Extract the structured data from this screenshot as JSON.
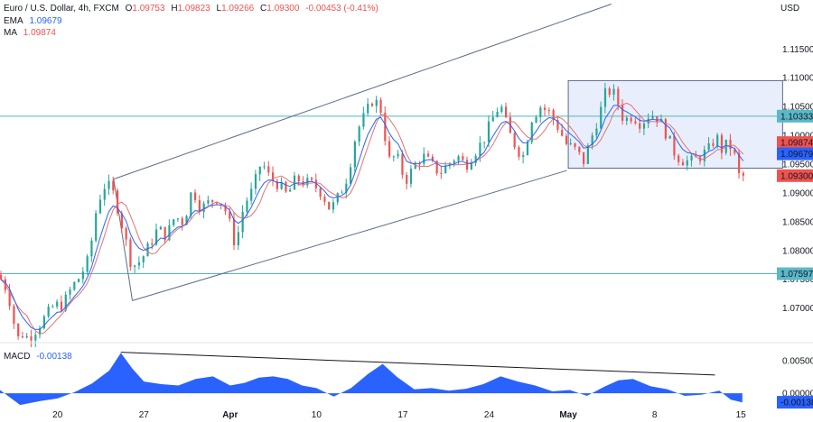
{
  "header": {
    "symbol": "Euro / U.S. Dollar, 4h, FXCM",
    "open_label": "O",
    "open": "1.09753",
    "high_label": "H",
    "high": "1.09823",
    "low_label": "L",
    "low": "1.09266",
    "close_label": "C",
    "close": "1.09300",
    "change": "-0.00453 (-0.41%)",
    "ema_label": "EMA",
    "ema_value": "1.09679",
    "ma_label": "MA",
    "ma_value": "1.09874"
  },
  "macd": {
    "label": "MACD",
    "value": "-0.00138"
  },
  "currency": "USD",
  "colors": {
    "up": "#26a69a",
    "down": "#ef5350",
    "ema": "#2962ff",
    "ma": "#e57373",
    "level": "#4db6c8",
    "channel": "#5d6b8a",
    "range_fill": "#e8eefc",
    "macd_fill": "#2962ff",
    "axis_text": "#131722",
    "ema_tag": "#2962ff",
    "ma_tag": "#ef5350",
    "close_tag": "#ef5350",
    "level_tag": "#5ab8c9"
  },
  "chart_data": {
    "type": "candlestick",
    "y_axis": {
      "range": [
        1.064,
        1.1235
      ],
      "ticks": [
        "1.11500",
        "1.11000",
        "1.10500",
        "1.10000",
        "1.09500",
        "1.09000",
        "1.08500",
        "1.08000",
        "1.07500",
        "1.07000"
      ],
      "tick_values": [
        1.115,
        1.11,
        1.105,
        1.1,
        1.095,
        1.09,
        1.085,
        1.08,
        1.075,
        1.07
      ]
    },
    "x_axis": {
      "labels": [
        "20",
        "27",
        "Apr",
        "10",
        "17",
        "24",
        "May",
        "8",
        "15"
      ],
      "bar_index": [
        40,
        100,
        160,
        220,
        280,
        340,
        395,
        455,
        515
      ],
      "bar_count": 540
    },
    "price_path": [
      [
        0,
        1.0758
      ],
      [
        5,
        1.0745
      ],
      [
        10,
        1.0705
      ],
      [
        14,
        1.0645
      ],
      [
        18,
        1.0655
      ],
      [
        22,
        1.0648
      ],
      [
        28,
        1.0665
      ],
      [
        34,
        1.0685
      ],
      [
        40,
        1.0705
      ],
      [
        46,
        1.0705
      ],
      [
        52,
        1.0735
      ],
      [
        58,
        1.0755
      ],
      [
        64,
        1.0785
      ],
      [
        70,
        1.0882
      ],
      [
        76,
        1.0918
      ],
      [
        82,
        1.0895
      ],
      [
        88,
        1.0835
      ],
      [
        94,
        1.0772
      ],
      [
        100,
        1.0782
      ],
      [
        106,
        1.0808
      ],
      [
        112,
        1.0838
      ],
      [
        118,
        1.0825
      ],
      [
        124,
        1.086
      ],
      [
        130,
        1.0848
      ],
      [
        136,
        1.0908
      ],
      [
        142,
        1.0872
      ],
      [
        148,
        1.0885
      ],
      [
        154,
        1.0892
      ],
      [
        160,
        1.0865
      ],
      [
        166,
        1.0808
      ],
      [
        172,
        1.088
      ],
      [
        178,
        1.0905
      ],
      [
        184,
        1.0955
      ],
      [
        190,
        1.0925
      ],
      [
        196,
        1.0915
      ],
      [
        202,
        1.0895
      ],
      [
        208,
        1.0925
      ],
      [
        214,
        1.0918
      ],
      [
        220,
        1.0915
      ],
      [
        226,
        1.09
      ],
      [
        232,
        1.087
      ],
      [
        238,
        1.0895
      ],
      [
        244,
        1.093
      ],
      [
        250,
        1.1005
      ],
      [
        256,
        1.1035
      ],
      [
        262,
        1.1065
      ],
      [
        268,
        1.104
      ],
      [
        272,
        1.0955
      ],
      [
        278,
        1.0965
      ],
      [
        284,
        1.092
      ],
      [
        290,
        1.0945
      ],
      [
        296,
        1.0965
      ],
      [
        302,
        1.095
      ],
      [
        308,
        1.0935
      ],
      [
        314,
        1.095
      ],
      [
        320,
        1.0965
      ],
      [
        326,
        1.0948
      ],
      [
        332,
        1.097
      ],
      [
        338,
        1.099
      ],
      [
        344,
        1.1025
      ],
      [
        350,
        1.1055
      ],
      [
        356,
        1.1005
      ],
      [
        362,
        1.0975
      ],
      [
        366,
        1.0965
      ],
      [
        372,
        1.103
      ],
      [
        378,
        1.105
      ],
      [
        384,
        1.104
      ],
      [
        390,
        1.1015
      ],
      [
        396,
        1.0985
      ],
      [
        402,
        1.0975
      ],
      [
        408,
        1.0955
      ],
      [
        414,
        1.1
      ],
      [
        420,
        1.1045
      ],
      [
        424,
        1.108
      ],
      [
        430,
        1.107
      ],
      [
        436,
        1.1025
      ],
      [
        442,
        1.1035
      ],
      [
        448,
        1.102
      ],
      [
        454,
        1.1038
      ],
      [
        460,
        1.103
      ],
      [
        466,
        1.1
      ],
      [
        472,
        1.0965
      ],
      [
        478,
        1.0955
      ],
      [
        484,
        1.0955
      ],
      [
        490,
        1.0965
      ],
      [
        496,
        1.0978
      ],
      [
        500,
        1.1
      ],
      [
        504,
        1.0975
      ],
      [
        508,
        1.0985
      ],
      [
        512,
        1.0975
      ],
      [
        516,
        1.093
      ]
    ],
    "levels": [
      {
        "name": "upper-level",
        "value": 1.10333,
        "label": "1.10333"
      },
      {
        "name": "lower-level",
        "value": 1.07597,
        "label": "1.07597"
      }
    ],
    "price_tags": [
      {
        "name": "ma",
        "value": 1.09874,
        "label": "1.09874"
      },
      {
        "name": "ema",
        "value": 1.09679,
        "label": "1.09679"
      },
      {
        "name": "close",
        "value": 1.093,
        "label": "1.09300"
      }
    ],
    "channel": {
      "upper": [
        [
          79,
          1.0924
        ],
        [
          425,
          1.1228
        ]
      ],
      "lower": [
        [
          92,
          1.0713
        ],
        [
          394,
          1.0939
        ]
      ]
    },
    "range_box": {
      "x": [
        395,
        544
      ],
      "y": [
        1.0943,
        1.1095
      ]
    },
    "macd": {
      "ticks": [
        "0.00500",
        "0.00000"
      ],
      "tick_values": [
        0.005,
        0.0
      ],
      "range": [
        -0.0022,
        0.0075
      ],
      "value_label": "-0.00138",
      "trendline": [
        [
          84,
          0.0063
        ],
        [
          497,
          0.0028
        ]
      ],
      "path": [
        [
          0,
          0.0005
        ],
        [
          14,
          -0.0018
        ],
        [
          28,
          -0.0012
        ],
        [
          40,
          -0.0008
        ],
        [
          52,
          0.0002
        ],
        [
          64,
          0.0015
        ],
        [
          76,
          0.0035
        ],
        [
          84,
          0.0062
        ],
        [
          92,
          0.0038
        ],
        [
          100,
          0.0018
        ],
        [
          112,
          0.0014
        ],
        [
          124,
          0.0012
        ],
        [
          136,
          0.0022
        ],
        [
          148,
          0.0026
        ],
        [
          160,
          0.0012
        ],
        [
          170,
          0.0016
        ],
        [
          180,
          0.0024
        ],
        [
          190,
          0.0026
        ],
        [
          200,
          0.0022
        ],
        [
          210,
          0.0012
        ],
        [
          220,
          0.0008
        ],
        [
          232,
          -0.0005
        ],
        [
          244,
          0.0008
        ],
        [
          256,
          0.003
        ],
        [
          266,
          0.0045
        ],
        [
          276,
          0.0025
        ],
        [
          288,
          0.0006
        ],
        [
          300,
          0.0008
        ],
        [
          312,
          0.0004
        ],
        [
          324,
          0.0007
        ],
        [
          336,
          0.0014
        ],
        [
          348,
          0.0026
        ],
        [
          360,
          0.0018
        ],
        [
          372,
          0.0012
        ],
        [
          384,
          0.0003
        ],
        [
          396,
          0.0005
        ],
        [
          408,
          -0.0004
        ],
        [
          420,
          0.001
        ],
        [
          430,
          0.002
        ],
        [
          440,
          0.0022
        ],
        [
          452,
          0.0011
        ],
        [
          464,
          0.0006
        ],
        [
          476,
          -0.0004
        ],
        [
          488,
          -0.0002
        ],
        [
          500,
          0.0004
        ],
        [
          508,
          -0.001
        ],
        [
          516,
          -0.0014
        ]
      ]
    }
  }
}
